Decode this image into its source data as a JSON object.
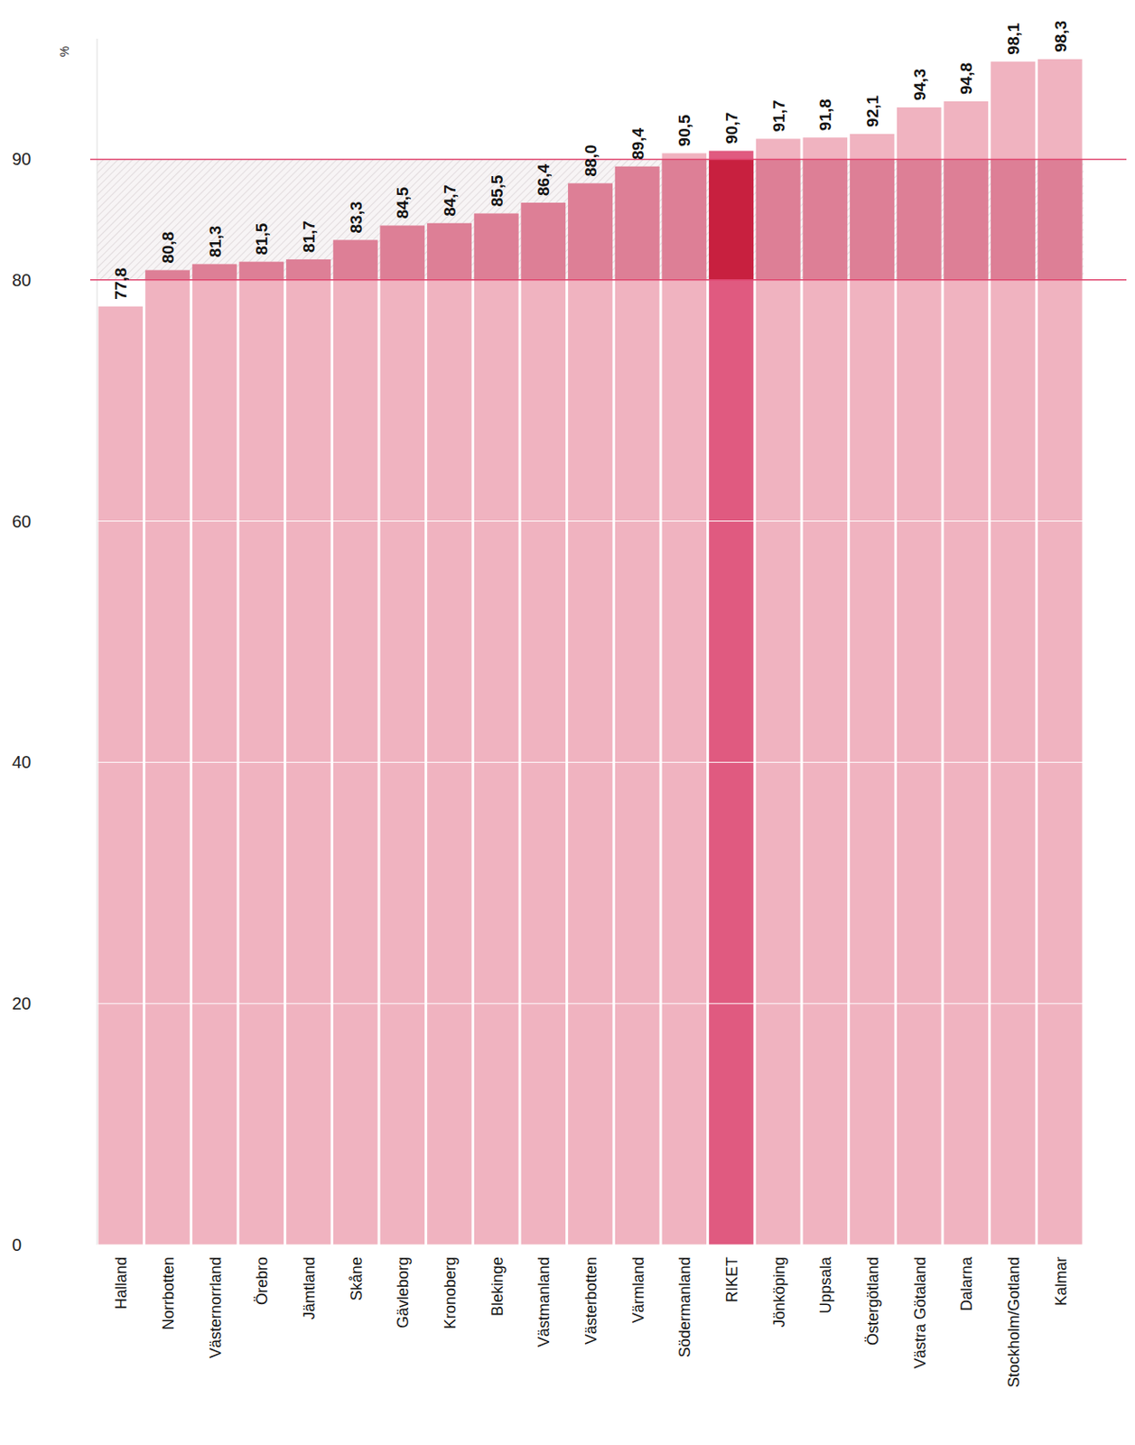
{
  "chart_data": {
    "type": "bar",
    "y_label": "%",
    "categories": [
      "Halland",
      "Norrbotten",
      "Västernorrland",
      "Örebro",
      "Jämtland",
      "Skåne",
      "Gävleborg",
      "Kronoberg",
      "Blekinge",
      "Västmanland",
      "Västerbotten",
      "Värmland",
      "Södermanland",
      "RIKET",
      "Jönköping",
      "Uppsala",
      "Östergötland",
      "Västra Götaland",
      "Dalarna",
      "Stockholm/Gotland",
      "Kalmar"
    ],
    "values": [
      77.8,
      80.8,
      81.3,
      81.5,
      81.7,
      83.3,
      84.5,
      84.7,
      85.5,
      86.4,
      88.0,
      89.4,
      90.5,
      90.7,
      91.7,
      91.8,
      92.1,
      94.3,
      94.8,
      98.1,
      98.3
    ],
    "value_labels": [
      "77,8",
      "80,8",
      "81,3",
      "81,5",
      "81,7",
      "83,3",
      "84,5",
      "84,7",
      "85,5",
      "86,4",
      "88,0",
      "89,4",
      "90,5",
      "90,7",
      "91,7",
      "91,8",
      "92,1",
      "94,3",
      "94,8",
      "98,1",
      "98,3"
    ],
    "colors": [
      "#f0b3c0",
      "#f0b3c0",
      "#f0b3c0",
      "#f0b3c0",
      "#f0b3c0",
      "#f0b3c0",
      "#f0b3c0",
      "#f0b3c0",
      "#f0b3c0",
      "#f0b3c0",
      "#f0b3c0",
      "#f0b3c0",
      "#f0b3c0",
      "#e05a80",
      "#f0b3c0",
      "#f0b3c0",
      "#f0b3c0",
      "#f0b3c0",
      "#f0b3c0",
      "#f0b3c0",
      "#f0b3c0"
    ],
    "ylim": [
      0,
      100
    ],
    "yticks": [
      0,
      20,
      40,
      60,
      80,
      90
    ],
    "grid": true,
    "data_labels": true
  }
}
